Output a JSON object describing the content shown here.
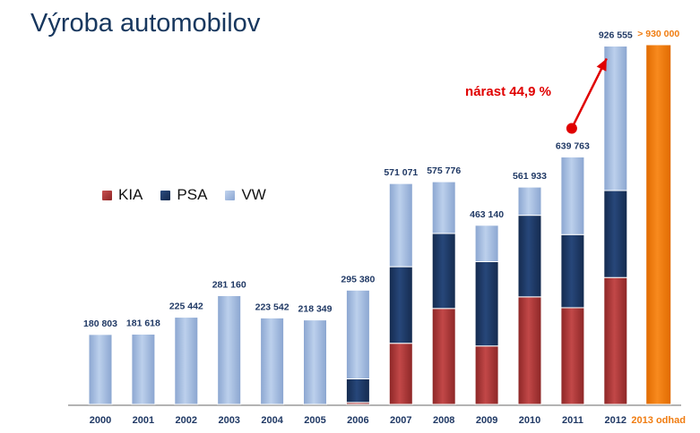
{
  "title": "Výroba automobilov",
  "chart_data": {
    "type": "bar",
    "stacked": true,
    "categories": [
      "2000",
      "2001",
      "2002",
      "2003",
      "2004",
      "2005",
      "2006",
      "2007",
      "2008",
      "2009",
      "2010",
      "2011",
      "2012"
    ],
    "series": [
      {
        "name": "KIA",
        "values": [
          0,
          0,
          0,
          0,
          0,
          0,
          5000,
          158000,
          248000,
          151000,
          278000,
          250000,
          328000
        ]
      },
      {
        "name": "PSA",
        "values": [
          0,
          0,
          0,
          0,
          0,
          0,
          61000,
          198000,
          194000,
          218000,
          211000,
          189000,
          225000
        ]
      },
      {
        "name": "VW",
        "values": [
          180803,
          181618,
          225442,
          281160,
          223542,
          218349,
          229380,
          215071,
          133776,
          94140,
          72933,
          200763,
          373555
        ]
      }
    ],
    "totals": [
      "180 803",
      "181 618",
      "225 442",
      "281 160",
      "223 542",
      "218 349",
      "295 380",
      "571 071",
      "575 776",
      "463 140",
      "561 933",
      "639 763",
      "926 555"
    ],
    "estimate": {
      "category_label": "2013",
      "suffix": "odhad",
      "value": 930000,
      "label": "> 930 000"
    },
    "annotation": "nárast 44,9 %",
    "ylim": [
      0,
      930000
    ],
    "legend_position": "left-middle",
    "colors": {
      "KIA": "#a83232",
      "PSA": "#1b3560",
      "VW": "#9db6dc",
      "estimate": "#f07c10",
      "annotation": "#e00000",
      "labels": "#1f3864"
    }
  }
}
